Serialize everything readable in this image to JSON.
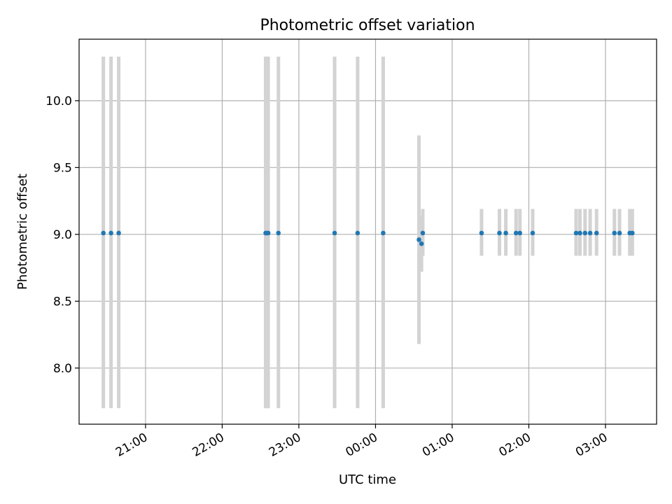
{
  "chart_data": {
    "type": "scatter",
    "title": "Photometric offset variation",
    "xlabel": "UTC time",
    "ylabel": "Photometric offset",
    "grid": true,
    "x_is_time": true,
    "x_tick_labels": [
      "21:00",
      "22:00",
      "23:00",
      "00:00",
      "01:00",
      "02:00",
      "03:00"
    ],
    "x_ticks": [
      "21:00",
      "22:00",
      "23:00",
      "24:00",
      "25:00",
      "26:00",
      "27:00"
    ],
    "xlim": [
      "20:08",
      "27:40"
    ],
    "y_tick_labels": [
      "8.0",
      "8.5",
      "9.0",
      "9.5",
      "10.0"
    ],
    "y_ticks": [
      8.0,
      8.5,
      9.0,
      9.5,
      10.0
    ],
    "ylim": [
      7.58,
      10.46
    ],
    "colors": {
      "points": "#1f77b4",
      "error_bars": "#d3d3d3",
      "grid": "#b0b0b0"
    },
    "series": [
      {
        "points": [
          {
            "x": "20:27",
            "y": 9.01,
            "ylo": 7.7,
            "yhi": 10.33
          },
          {
            "x": "20:33",
            "y": 9.01,
            "ylo": 7.7,
            "yhi": 10.33
          },
          {
            "x": "20:39",
            "y": 9.01,
            "ylo": 7.7,
            "yhi": 10.33
          },
          {
            "x": "22:34",
            "y": 9.01,
            "ylo": 7.7,
            "yhi": 10.33
          },
          {
            "x": "22:35",
            "y": 9.01,
            "ylo": 7.7,
            "yhi": 10.33
          },
          {
            "x": "22:36",
            "y": 9.01,
            "ylo": 7.7,
            "yhi": 10.33
          },
          {
            "x": "22:44",
            "y": 9.01,
            "ylo": 7.7,
            "yhi": 10.33
          },
          {
            "x": "23:28",
            "y": 9.01,
            "ylo": 7.7,
            "yhi": 10.33
          },
          {
            "x": "23:46",
            "y": 9.01,
            "ylo": 7.7,
            "yhi": 10.33
          },
          {
            "x": "24:06",
            "y": 9.01,
            "ylo": 7.7,
            "yhi": 10.33
          },
          {
            "x": "24:34",
            "y": 8.96,
            "ylo": 8.18,
            "yhi": 9.74
          },
          {
            "x": "24:36",
            "y": 8.93,
            "ylo": 8.72,
            "yhi": 9.14
          },
          {
            "x": "24:37",
            "y": 9.01,
            "ylo": 8.84,
            "yhi": 9.19
          },
          {
            "x": "25:23",
            "y": 9.01,
            "ylo": 8.84,
            "yhi": 9.19
          },
          {
            "x": "25:37",
            "y": 9.01,
            "ylo": 8.84,
            "yhi": 9.19
          },
          {
            "x": "25:42",
            "y": 9.01,
            "ylo": 8.84,
            "yhi": 9.19
          },
          {
            "x": "25:50",
            "y": 9.01,
            "ylo": 8.84,
            "yhi": 9.19
          },
          {
            "x": "25:53",
            "y": 9.01,
            "ylo": 8.84,
            "yhi": 9.19
          },
          {
            "x": "26:03",
            "y": 9.01,
            "ylo": 8.84,
            "yhi": 9.19
          },
          {
            "x": "26:37",
            "y": 9.01,
            "ylo": 8.84,
            "yhi": 9.19
          },
          {
            "x": "26:40",
            "y": 9.01,
            "ylo": 8.84,
            "yhi": 9.19
          },
          {
            "x": "26:44",
            "y": 9.01,
            "ylo": 8.84,
            "yhi": 9.19
          },
          {
            "x": "26:48",
            "y": 9.01,
            "ylo": 8.84,
            "yhi": 9.19
          },
          {
            "x": "26:53",
            "y": 9.01,
            "ylo": 8.84,
            "yhi": 9.19
          },
          {
            "x": "27:07",
            "y": 9.01,
            "ylo": 8.84,
            "yhi": 9.19
          },
          {
            "x": "27:11",
            "y": 9.01,
            "ylo": 8.84,
            "yhi": 9.19
          },
          {
            "x": "27:19",
            "y": 9.01,
            "ylo": 8.84,
            "yhi": 9.19
          },
          {
            "x": "27:21",
            "y": 9.01,
            "ylo": 8.84,
            "yhi": 9.19
          }
        ]
      }
    ]
  }
}
